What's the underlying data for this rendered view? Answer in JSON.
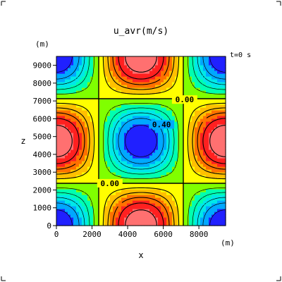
{
  "chart_data": {
    "type": "heatmap",
    "title": "u_avr(m/s)",
    "xlabel": "x",
    "ylabel": "z",
    "x_unit": "(m)",
    "z_unit": "(m)",
    "time_label": "t=0  s",
    "xlim": [
      0,
      9500
    ],
    "ylim": [
      0,
      9500
    ],
    "x_ticks": [
      0,
      2000,
      4000,
      6000,
      8000
    ],
    "y_ticks": [
      0,
      1000,
      2000,
      3000,
      4000,
      5000,
      6000,
      7000,
      8000,
      9000
    ],
    "contour_labels": [
      "0.00",
      "0.40",
      "0.00"
    ],
    "field": {
      "description_of_pattern": "cos(2*pi*x/9500)*cos(2*pi*z/9500) scaled",
      "amplitude": 0.6,
      "period_x": 9500,
      "period_z": 9500
    },
    "contour_levels": [
      -0.5,
      -0.4,
      -0.3,
      -0.2,
      -0.1,
      0.0,
      0.1,
      0.2,
      0.3,
      0.4,
      0.5
    ],
    "colormap": [
      "#2020ff",
      "#00a8ff",
      "#00e8e8",
      "#00ffb0",
      "#80ff00",
      "#ffff00",
      "#ffc000",
      "#ff7000",
      "#ff2020",
      "#ff7070"
    ]
  }
}
